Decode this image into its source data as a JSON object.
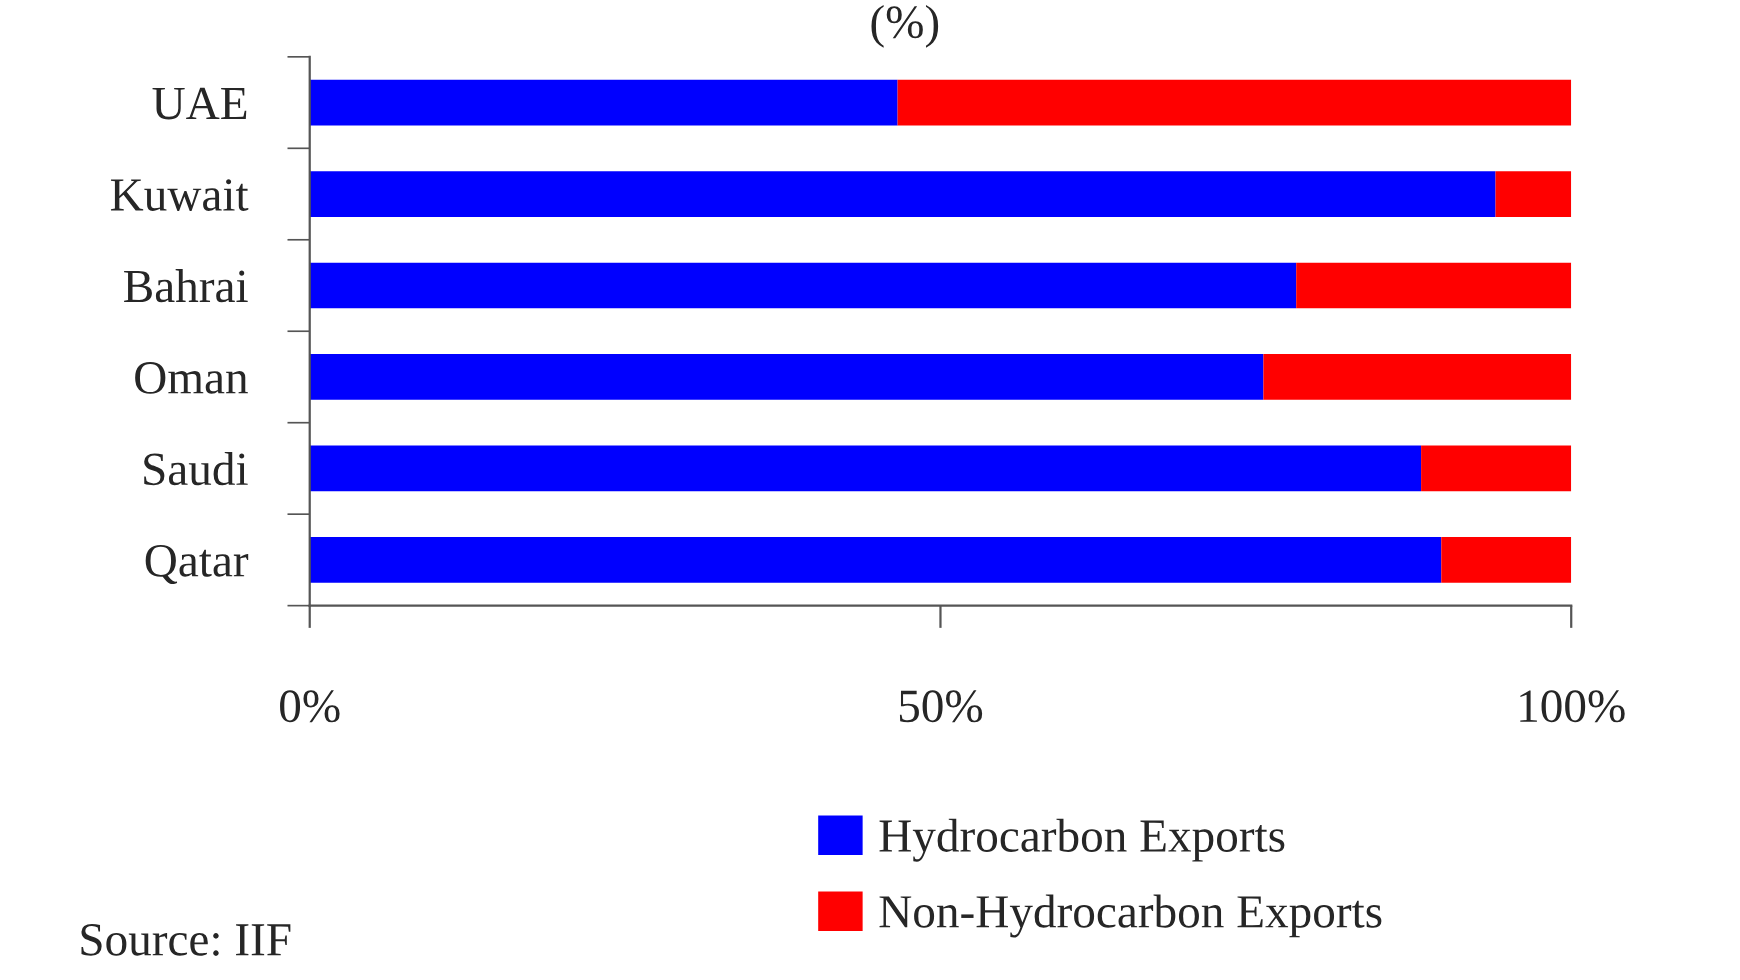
{
  "chart_data": {
    "type": "bar",
    "orientation": "horizontal",
    "stacked": true,
    "title": "(%)",
    "categories": [
      "UAE",
      "Kuwait",
      "Bahrai",
      "Oman",
      "Saudi",
      "Qatar"
    ],
    "series": [
      {
        "name": "Hydrocarbon Exports",
        "color": "#0000ff",
        "values": [
          46.6,
          94.0,
          78.2,
          75.6,
          88.1,
          89.7
        ]
      },
      {
        "name": "Non-Hydrocarbon Exports",
        "color": "#ff0000",
        "values": [
          53.4,
          6.0,
          21.8,
          24.4,
          11.9,
          10.3
        ]
      }
    ],
    "xlim": [
      0,
      100
    ],
    "xticks": [
      {
        "value": 0,
        "label": "0%"
      },
      {
        "value": 50,
        "label": "50%"
      },
      {
        "value": 100,
        "label": "100%"
      }
    ],
    "grid": false,
    "legend": "bottom right",
    "annotations": [
      "Source: IIF"
    ]
  }
}
